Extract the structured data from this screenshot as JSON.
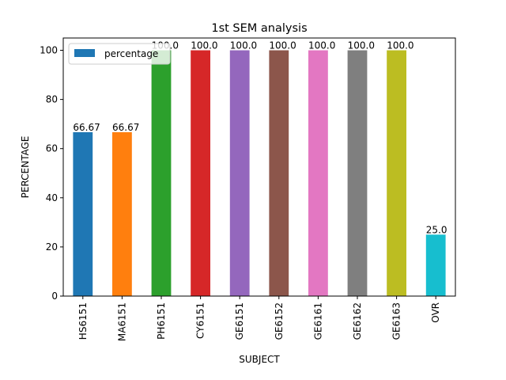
{
  "chart_data": {
    "type": "bar",
    "title": "1st SEM analysis",
    "xlabel": "SUBJECT",
    "ylabel": "PERCENTAGE",
    "categories": [
      "HS6151",
      "MA6151",
      "PH6151",
      "CY6151",
      "GE6151",
      "GE6152",
      "GE6161",
      "GE6162",
      "GE6163",
      "OVR"
    ],
    "series": [
      {
        "name": "percentage",
        "values": [
          66.67,
          66.67,
          100.0,
          100.0,
          100.0,
          100.0,
          100.0,
          100.0,
          100.0,
          25.0
        ]
      }
    ],
    "data_labels": [
      "66.67",
      "66.67",
      "100.0",
      "100.0",
      "100.0",
      "100.0",
      "100.0",
      "100.0",
      "100.0",
      "25.0"
    ],
    "ylim": [
      0,
      105
    ],
    "yticks": [
      0,
      20,
      40,
      60,
      80,
      100
    ],
    "ytick_labels": [
      "0",
      "20",
      "40",
      "60",
      "80",
      "100"
    ],
    "grid": false,
    "legend_position": "top-left",
    "colors": [
      "#1f77b4",
      "#ff7f0e",
      "#2ca02c",
      "#d62728",
      "#9467bd",
      "#8c564b",
      "#e377c2",
      "#7f7f7f",
      "#bcbd22",
      "#17becf"
    ],
    "legend_color": "#1f77b4"
  }
}
